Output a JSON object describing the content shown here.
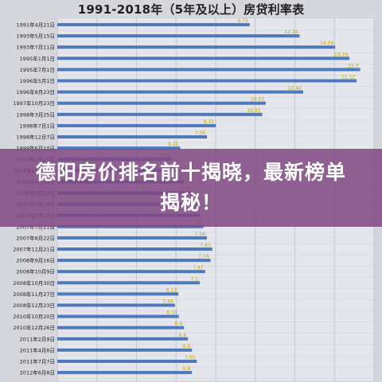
{
  "chart_data": {
    "type": "bar",
    "orientation": "horizontal",
    "title": "1991-2018年（5年及以上）房贷利率表",
    "categories": [
      "1991年4月21日",
      "1993年5月15日",
      "1993年7月11日",
      "1995年1月1日",
      "1995年7月1日",
      "1996年5月1日",
      "1996年8月23日",
      "1997年10月23日",
      "1998年3月25日",
      "1998年7月1日",
      "1998年12月7日",
      "1999年6月10日",
      "2002年2月21日",
      "2004年10月29日",
      "2006年4月28日",
      "2006年8月19日",
      "2007年3月18日",
      "2007年5月19日",
      "2007年7月21日",
      "2007年8月22日",
      "2007年12月21日",
      "2008年9月16日",
      "2008年10月9日",
      "2008年10月30日",
      "2008年11月27日",
      "2008年12月23日",
      "2010年10月20日",
      "2010年12月26日",
      "2011年2月9日",
      "2011年4月6日",
      "2011年7月7日",
      "2012年6月8日"
    ],
    "values": [
      9.72,
      12.24,
      14.04,
      14.76,
      15.3,
      15.12,
      12.42,
      10.53,
      10.35,
      8.01,
      7.56,
      6.21,
      5.76,
      6.12,
      6.39,
      6.84,
      7.11,
      7.2,
      7.38,
      7.56,
      7.83,
      7.74,
      7.47,
      7.2,
      6.12,
      5.94,
      6.14,
      6.4,
      6.6,
      6.8,
      7.05,
      6.8
    ],
    "value_labels": [
      "9.72",
      "12.24",
      "14.04",
      "14.76",
      "15.3",
      "15.12",
      "12.42",
      "10.53",
      "10.35",
      "8.01",
      "7.56",
      "6.21",
      "5.76",
      "6.12",
      "6.39",
      "6.84",
      "7.11",
      "7.2",
      "7.38",
      "7.56",
      "7.83",
      "7.74",
      "7.47",
      "7.2",
      "6.12",
      "5.94",
      "6.14",
      "6.4",
      "6.6",
      "6.8",
      "7.05",
      "6.8"
    ],
    "xlim": [
      0,
      16
    ],
    "grid": true,
    "bar_color": "#4f79bd",
    "plot_bg": "#e4e6ec"
  },
  "banner": {
    "text": "德阳房价排名前十揭晓，最新榜单揭秘！",
    "bg_color": "#804682"
  }
}
